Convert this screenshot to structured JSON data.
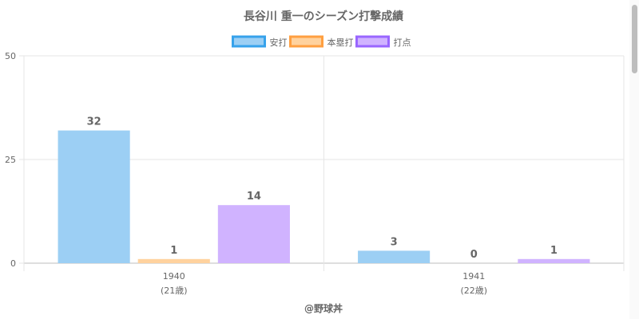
{
  "chart_data": {
    "type": "bar",
    "title": "長谷川 重一のシーズン打撃成績",
    "categories": [
      {
        "year": "1940",
        "age": "(21歳)"
      },
      {
        "year": "1941",
        "age": "(22歳)"
      }
    ],
    "series": [
      {
        "name": "安打",
        "values": [
          32,
          3
        ],
        "fill": "#9ccff4",
        "border": "#36a2eb"
      },
      {
        "name": "本塁打",
        "values": [
          1,
          0
        ],
        "fill": "#ffd29e",
        "border": "#ff9f40"
      },
      {
        "name": "打点",
        "values": [
          14,
          1
        ],
        "fill": "#d0b3ff",
        "border": "#9966ff"
      }
    ],
    "ylim": [
      0,
      50
    ],
    "yticks": [
      0,
      25,
      50
    ],
    "grid": true,
    "legend": "top"
  },
  "credit": "@野球丼"
}
